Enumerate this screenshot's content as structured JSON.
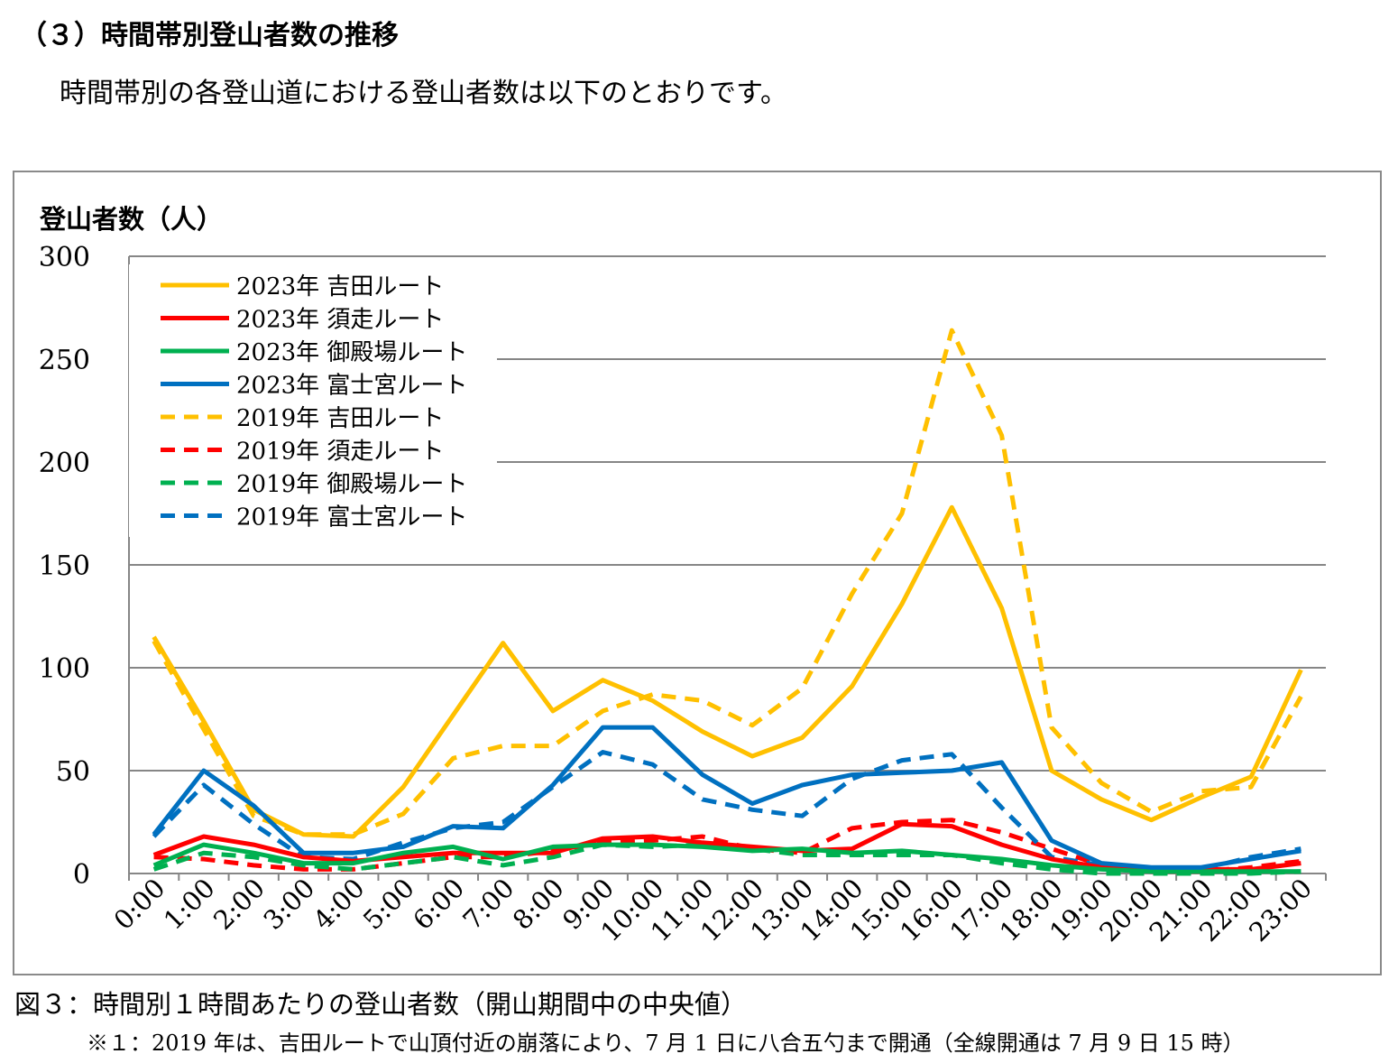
{
  "header": {
    "title": "（３）時間帯別登山者数の推移",
    "intro": "時間帯別の各登山道における登山者数は以下のとおりです。"
  },
  "figure": {
    "caption": "図３：時間別１時間あたりの登山者数（開山期間中の中央値）",
    "note": "※１：2019 年は、吉田ルートで山頂付近の崩落により、7 月 1 日に八合五勺まで開通（全線開通は 7 月 9 日 15 時）"
  },
  "chart_data": {
    "type": "line",
    "title": "",
    "xlabel": "",
    "ylabel": "登山者数（人）",
    "ylim": [
      0,
      300
    ],
    "yticks": [
      0,
      50,
      100,
      150,
      200,
      250,
      300
    ],
    "grid": true,
    "legend_position": "top-left",
    "categories": [
      "0:00",
      "1:00",
      "2:00",
      "3:00",
      "4:00",
      "5:00",
      "6:00",
      "7:00",
      "8:00",
      "9:00",
      "10:00",
      "11:00",
      "12:00",
      "13:00",
      "14:00",
      "15:00",
      "16:00",
      "17:00",
      "18:00",
      "19:00",
      "20:00",
      "21:00",
      "22:00",
      "23:00"
    ],
    "series": [
      {
        "name": "2023年 吉田ルート",
        "color": "#FFC000",
        "dash": "solid",
        "values": [
          115,
          74,
          31,
          19,
          18,
          42,
          77,
          112,
          79,
          94,
          84,
          69,
          57,
          66,
          91,
          131,
          178,
          129,
          50,
          36,
          26,
          37,
          47,
          99
        ]
      },
      {
        "name": "2023年 須走ルート",
        "color": "#FF0000",
        "dash": "solid",
        "values": [
          9,
          18,
          14,
          8,
          6,
          8,
          10,
          10,
          10,
          17,
          18,
          15,
          13,
          11,
          12,
          24,
          23,
          14,
          7,
          3,
          2,
          2,
          2,
          5
        ]
      },
      {
        "name": "2023年 御殿場ルート",
        "color": "#00B050",
        "dash": "solid",
        "values": [
          4,
          14,
          10,
          5,
          5,
          10,
          13,
          7,
          13,
          14,
          14,
          13,
          11,
          12,
          10,
          11,
          9,
          7,
          4,
          2,
          1,
          1,
          1,
          1
        ]
      },
      {
        "name": "2023年 富士宮ルート",
        "color": "#0070C0",
        "dash": "solid",
        "values": [
          19,
          50,
          33,
          10,
          10,
          13,
          23,
          22,
          43,
          71,
          71,
          48,
          34,
          43,
          48,
          49,
          50,
          54,
          16,
          5,
          3,
          3,
          7,
          11
        ]
      },
      {
        "name": "2019年 吉田ルート",
        "color": "#FFC000",
        "dash": "dashed",
        "values": [
          113,
          70,
          28,
          19,
          19,
          29,
          56,
          62,
          62,
          79,
          87,
          84,
          72,
          90,
          136,
          175,
          264,
          213,
          71,
          44,
          30,
          40,
          42,
          86
        ]
      },
      {
        "name": "2019年 須走ルート",
        "color": "#FF0000",
        "dash": "dashed",
        "values": [
          8,
          7,
          4,
          2,
          2,
          5,
          8,
          8,
          11,
          15,
          16,
          18,
          12,
          10,
          22,
          25,
          26,
          20,
          12,
          4,
          1,
          1,
          3,
          6
        ]
      },
      {
        "name": "2019年 御殿場ルート",
        "color": "#00B050",
        "dash": "dashed",
        "values": [
          2,
          10,
          8,
          4,
          2,
          5,
          8,
          4,
          8,
          14,
          13,
          14,
          12,
          9,
          9,
          9,
          9,
          5,
          2,
          0,
          0,
          0,
          0,
          1
        ]
      },
      {
        "name": "2019年 富士宮ルート",
        "color": "#0070C0",
        "dash": "dashed",
        "values": [
          18,
          43,
          24,
          8,
          7,
          15,
          22,
          25,
          42,
          59,
          53,
          36,
          31,
          28,
          46,
          55,
          58,
          32,
          8,
          4,
          2,
          2,
          8,
          12
        ]
      }
    ]
  }
}
